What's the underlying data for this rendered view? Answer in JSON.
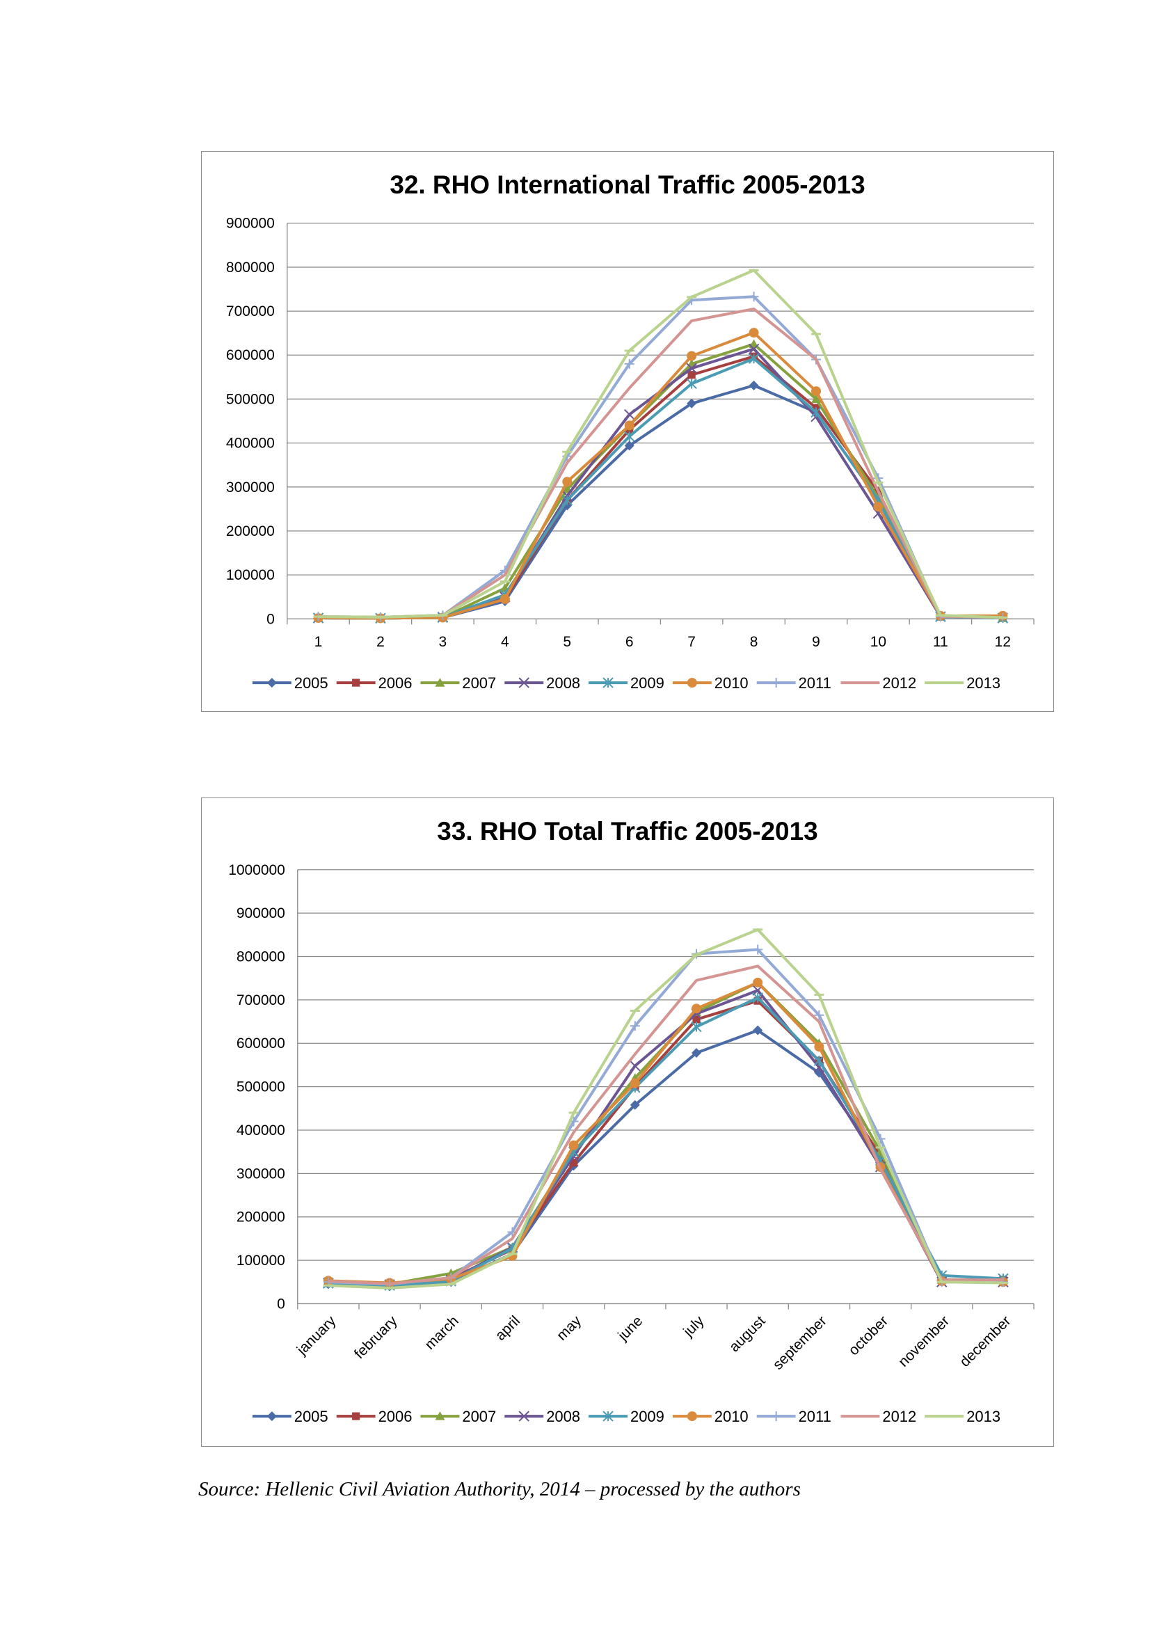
{
  "source_note": "Source: Hellenic Civil Aviation Authority, 2014 – processed by the authors",
  "colors": {
    "2005": "#4a6ba5",
    "2006": "#a6403e",
    "2007": "#86a23f",
    "2008": "#6b5592",
    "2009": "#4a9bb3",
    "2010": "#d98a3a",
    "2011": "#93a9d6",
    "2012": "#d49592",
    "2013": "#b9d38e"
  },
  "markers": {
    "2005": "diamond",
    "2006": "square",
    "2007": "triangle",
    "2008": "x",
    "2009": "asterisk",
    "2010": "circle",
    "2011": "plus",
    "2012": "none",
    "2013": "dash"
  },
  "chart_data": [
    {
      "type": "line",
      "title": "32. RHO International Traffic 2005-2013",
      "xlabel": "",
      "ylabel": "",
      "ylim": [
        0,
        900000
      ],
      "yticks": [
        "900000",
        "800000",
        "700000",
        "600000",
        "500000",
        "400000",
        "300000",
        "200000",
        "100000",
        "0"
      ],
      "categories": [
        "1",
        "2",
        "3",
        "4",
        "5",
        "6",
        "7",
        "8",
        "9",
        "10",
        "11",
        "12"
      ],
      "grid": "horizontal",
      "legend_position": "bottom",
      "series": [
        {
          "name": "2005",
          "values": [
            2000,
            1500,
            3000,
            40000,
            258000,
            394000,
            490000,
            531000,
            470000,
            270000,
            5000,
            2000
          ]
        },
        {
          "name": "2006",
          "values": [
            2000,
            1500,
            3000,
            45000,
            270000,
            430000,
            555000,
            597000,
            480000,
            290000,
            5000,
            2000
          ]
        },
        {
          "name": "2007",
          "values": [
            2000,
            1500,
            3000,
            70000,
            295000,
            440000,
            580000,
            625000,
            500000,
            275000,
            5000,
            2000
          ]
        },
        {
          "name": "2008",
          "values": [
            2000,
            1500,
            4000,
            50000,
            280000,
            465000,
            570000,
            614000,
            460000,
            240000,
            5000,
            2000
          ]
        },
        {
          "name": "2009",
          "values": [
            2000,
            1500,
            3000,
            55000,
            270000,
            415000,
            535000,
            592000,
            470000,
            270000,
            5000,
            2000
          ]
        },
        {
          "name": "2010",
          "values": [
            2000,
            1500,
            3000,
            45000,
            312000,
            440000,
            598000,
            651000,
            518000,
            255000,
            7000,
            7000
          ]
        },
        {
          "name": "2011",
          "values": [
            5000,
            4000,
            8000,
            110000,
            370000,
            580000,
            725000,
            733000,
            590000,
            320000,
            5000,
            3000
          ]
        },
        {
          "name": "2012",
          "values": [
            5000,
            4000,
            8000,
            100000,
            355000,
            525000,
            678000,
            705000,
            590000,
            290000,
            6000,
            3000
          ]
        },
        {
          "name": "2013",
          "values": [
            5000,
            4000,
            8000,
            85000,
            380000,
            610000,
            732000,
            793000,
            648000,
            310000,
            8000,
            3000
          ]
        }
      ]
    },
    {
      "type": "line",
      "title": "33. RHO Total Traffic 2005-2013",
      "xlabel": "",
      "ylabel": "",
      "ylim": [
        0,
        1000000
      ],
      "yticks": [
        "1000000",
        "900000",
        "800000",
        "700000",
        "600000",
        "500000",
        "400000",
        "300000",
        "200000",
        "100000",
        "0"
      ],
      "categories": [
        "january",
        "february",
        "march",
        "april",
        "may",
        "june",
        "july",
        "august",
        "september",
        "october",
        "november",
        "december"
      ],
      "grid": "horizontal",
      "legend_position": "bottom",
      "series": [
        {
          "name": "2005",
          "values": [
            45000,
            40000,
            50000,
            115000,
            318000,
            458000,
            578000,
            630000,
            532000,
            330000,
            55000,
            55000
          ]
        },
        {
          "name": "2006",
          "values": [
            52000,
            47000,
            58000,
            125000,
            325000,
            500000,
            655000,
            698000,
            560000,
            340000,
            55000,
            55000
          ]
        },
        {
          "name": "2007",
          "values": [
            50000,
            45000,
            70000,
            130000,
            350000,
            520000,
            672000,
            740000,
            600000,
            350000,
            55000,
            55000
          ]
        },
        {
          "name": "2008",
          "values": [
            48000,
            44000,
            55000,
            130000,
            340000,
            548000,
            668000,
            722000,
            545000,
            315000,
            50000,
            50000
          ]
        },
        {
          "name": "2009",
          "values": [
            47000,
            42000,
            52000,
            128000,
            350000,
            498000,
            638000,
            705000,
            560000,
            330000,
            65000,
            58000
          ]
        },
        {
          "name": "2010",
          "values": [
            53000,
            48000,
            57000,
            110000,
            365000,
            508000,
            680000,
            740000,
            592000,
            315000,
            52000,
            50000
          ]
        },
        {
          "name": "2011",
          "values": [
            50000,
            45000,
            60000,
            165000,
            420000,
            640000,
            806000,
            816000,
            665000,
            380000,
            50000,
            50000
          ]
        },
        {
          "name": "2012",
          "values": [
            52000,
            46000,
            60000,
            150000,
            395000,
            575000,
            745000,
            778000,
            650000,
            310000,
            55000,
            55000
          ]
        },
        {
          "name": "2013",
          "values": [
            42000,
            36000,
            45000,
            115000,
            440000,
            675000,
            804000,
            862000,
            712000,
            360000,
            50000,
            48000
          ]
        }
      ]
    }
  ]
}
